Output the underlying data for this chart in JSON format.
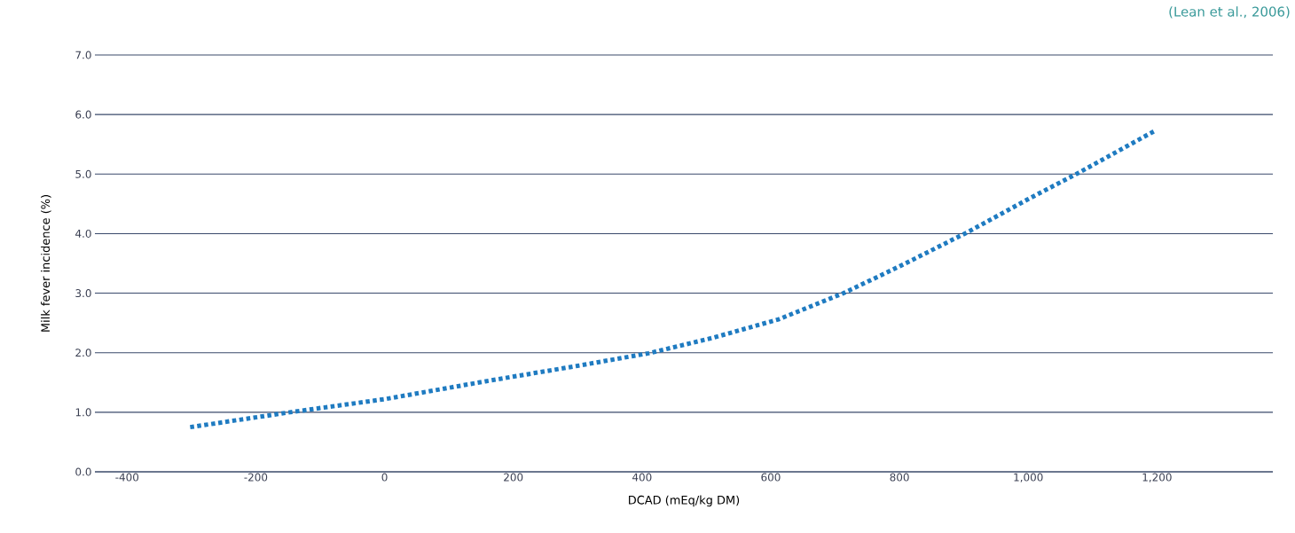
{
  "chart_data": {
    "type": "line",
    "xlabel": "DCAD (mEq/kg DM)",
    "ylabel": "Milk fever incidence (%)",
    "annotations": [
      "(Lean et al., 2006)"
    ],
    "series": [
      {
        "color": "#1f7bc1",
        "x": [
          -302,
          -147,
          0,
          157,
          300,
          410,
          510,
          612,
          713,
          800,
          905,
          1000,
          1078,
          1199
        ],
        "values": [
          0.75,
          1.0,
          1.22,
          1.52,
          1.78,
          1.99,
          2.25,
          2.56,
          3.0,
          3.45,
          4.02,
          4.58,
          5.02,
          5.74
        ]
      }
    ],
    "xlim": [
      -450,
      1380
    ],
    "ylim": [
      0,
      7
    ],
    "xticks": [
      -400,
      -200,
      0,
      200,
      400,
      600,
      800,
      {
        "value": 1000,
        "label": "1,000"
      },
      {
        "value": 1200,
        "label": "1,200"
      }
    ],
    "yticks": [
      {
        "value": 0,
        "label": "0.0"
      },
      {
        "value": 1,
        "label": "1.0"
      },
      {
        "value": 2,
        "label": "2.0"
      },
      {
        "value": 3,
        "label": "3.0"
      },
      {
        "value": 4,
        "label": "4.0"
      },
      {
        "value": 5,
        "label": "5.0"
      },
      {
        "value": 6,
        "label": "6.0"
      },
      {
        "value": 7,
        "label": "7.0"
      }
    ],
    "grid": "y",
    "marker": "none",
    "line_style": "dotted"
  }
}
